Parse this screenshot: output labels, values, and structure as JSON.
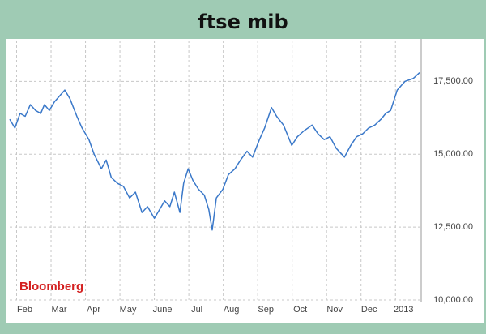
{
  "chart_data": {
    "type": "line",
    "title": "ftse mib",
    "annotation": "Bloomberg",
    "color": "#3a78c9",
    "grid": true,
    "x": [
      0.8,
      0.95,
      1.1,
      1.25,
      1.4,
      1.55,
      1.7,
      1.81,
      1.95,
      2.1,
      2.25,
      2.4,
      2.55,
      2.75,
      2.9,
      3.1,
      3.25,
      3.46,
      3.6,
      3.75,
      3.93,
      4.1,
      4.28,
      4.45,
      4.64,
      4.8,
      5.0,
      5.15,
      5.3,
      5.45,
      5.58,
      5.74,
      5.85,
      5.98,
      6.12,
      6.28,
      6.45,
      6.58,
      6.68,
      6.8,
      6.99,
      7.15,
      7.34,
      7.5,
      7.69,
      7.85,
      8.05,
      8.2,
      8.4,
      8.55,
      8.75,
      8.99,
      9.15,
      9.34,
      9.58,
      9.75,
      9.93,
      10.1,
      10.28,
      10.52,
      10.7,
      10.87,
      11.05,
      11.22,
      11.4,
      11.58,
      11.72,
      11.86,
      12.05,
      12.28,
      12.52,
      12.7
    ],
    "values": [
      16200,
      15900,
      16400,
      16300,
      16700,
      16500,
      16400,
      16700,
      16500,
      16800,
      17000,
      17200,
      16900,
      16300,
      15900,
      15500,
      15000,
      14500,
      14800,
      14200,
      14000,
      13900,
      13500,
      13700,
      13000,
      13200,
      12800,
      13100,
      13400,
      13200,
      13700,
      13000,
      14000,
      14500,
      14100,
      13800,
      13600,
      13100,
      12400,
      13500,
      13800,
      14300,
      14500,
      14800,
      15100,
      14900,
      15500,
      15900,
      16600,
      16300,
      16000,
      15300,
      15600,
      15800,
      16000,
      15700,
      15500,
      15600,
      15200,
      14900,
      15300,
      15600,
      15700,
      15900,
      16000,
      16200,
      16400,
      16500,
      17200,
      17500,
      17600,
      17800
    ],
    "xlim": [
      0.8,
      12.7
    ],
    "xticks": [
      {
        "value": 1,
        "label": "Feb"
      },
      {
        "value": 2,
        "label": "Mar"
      },
      {
        "value": 3,
        "label": "Apr"
      },
      {
        "value": 4,
        "label": "May"
      },
      {
        "value": 5,
        "label": "June"
      },
      {
        "value": 6,
        "label": "Jul"
      },
      {
        "value": 7,
        "label": "Aug"
      },
      {
        "value": 8,
        "label": "Sep"
      },
      {
        "value": 9,
        "label": "Oct"
      },
      {
        "value": 10,
        "label": "Nov"
      },
      {
        "value": 11,
        "label": "Dec"
      },
      {
        "value": 12,
        "label": "2013"
      }
    ],
    "ylim": [
      10000,
      18900
    ],
    "yticks": [
      {
        "value": 10000,
        "label": "10,000.00"
      },
      {
        "value": 12500,
        "label": "12,500.00"
      },
      {
        "value": 15000,
        "label": "15,000.00"
      },
      {
        "value": 17500,
        "label": "17,500.00"
      }
    ]
  }
}
